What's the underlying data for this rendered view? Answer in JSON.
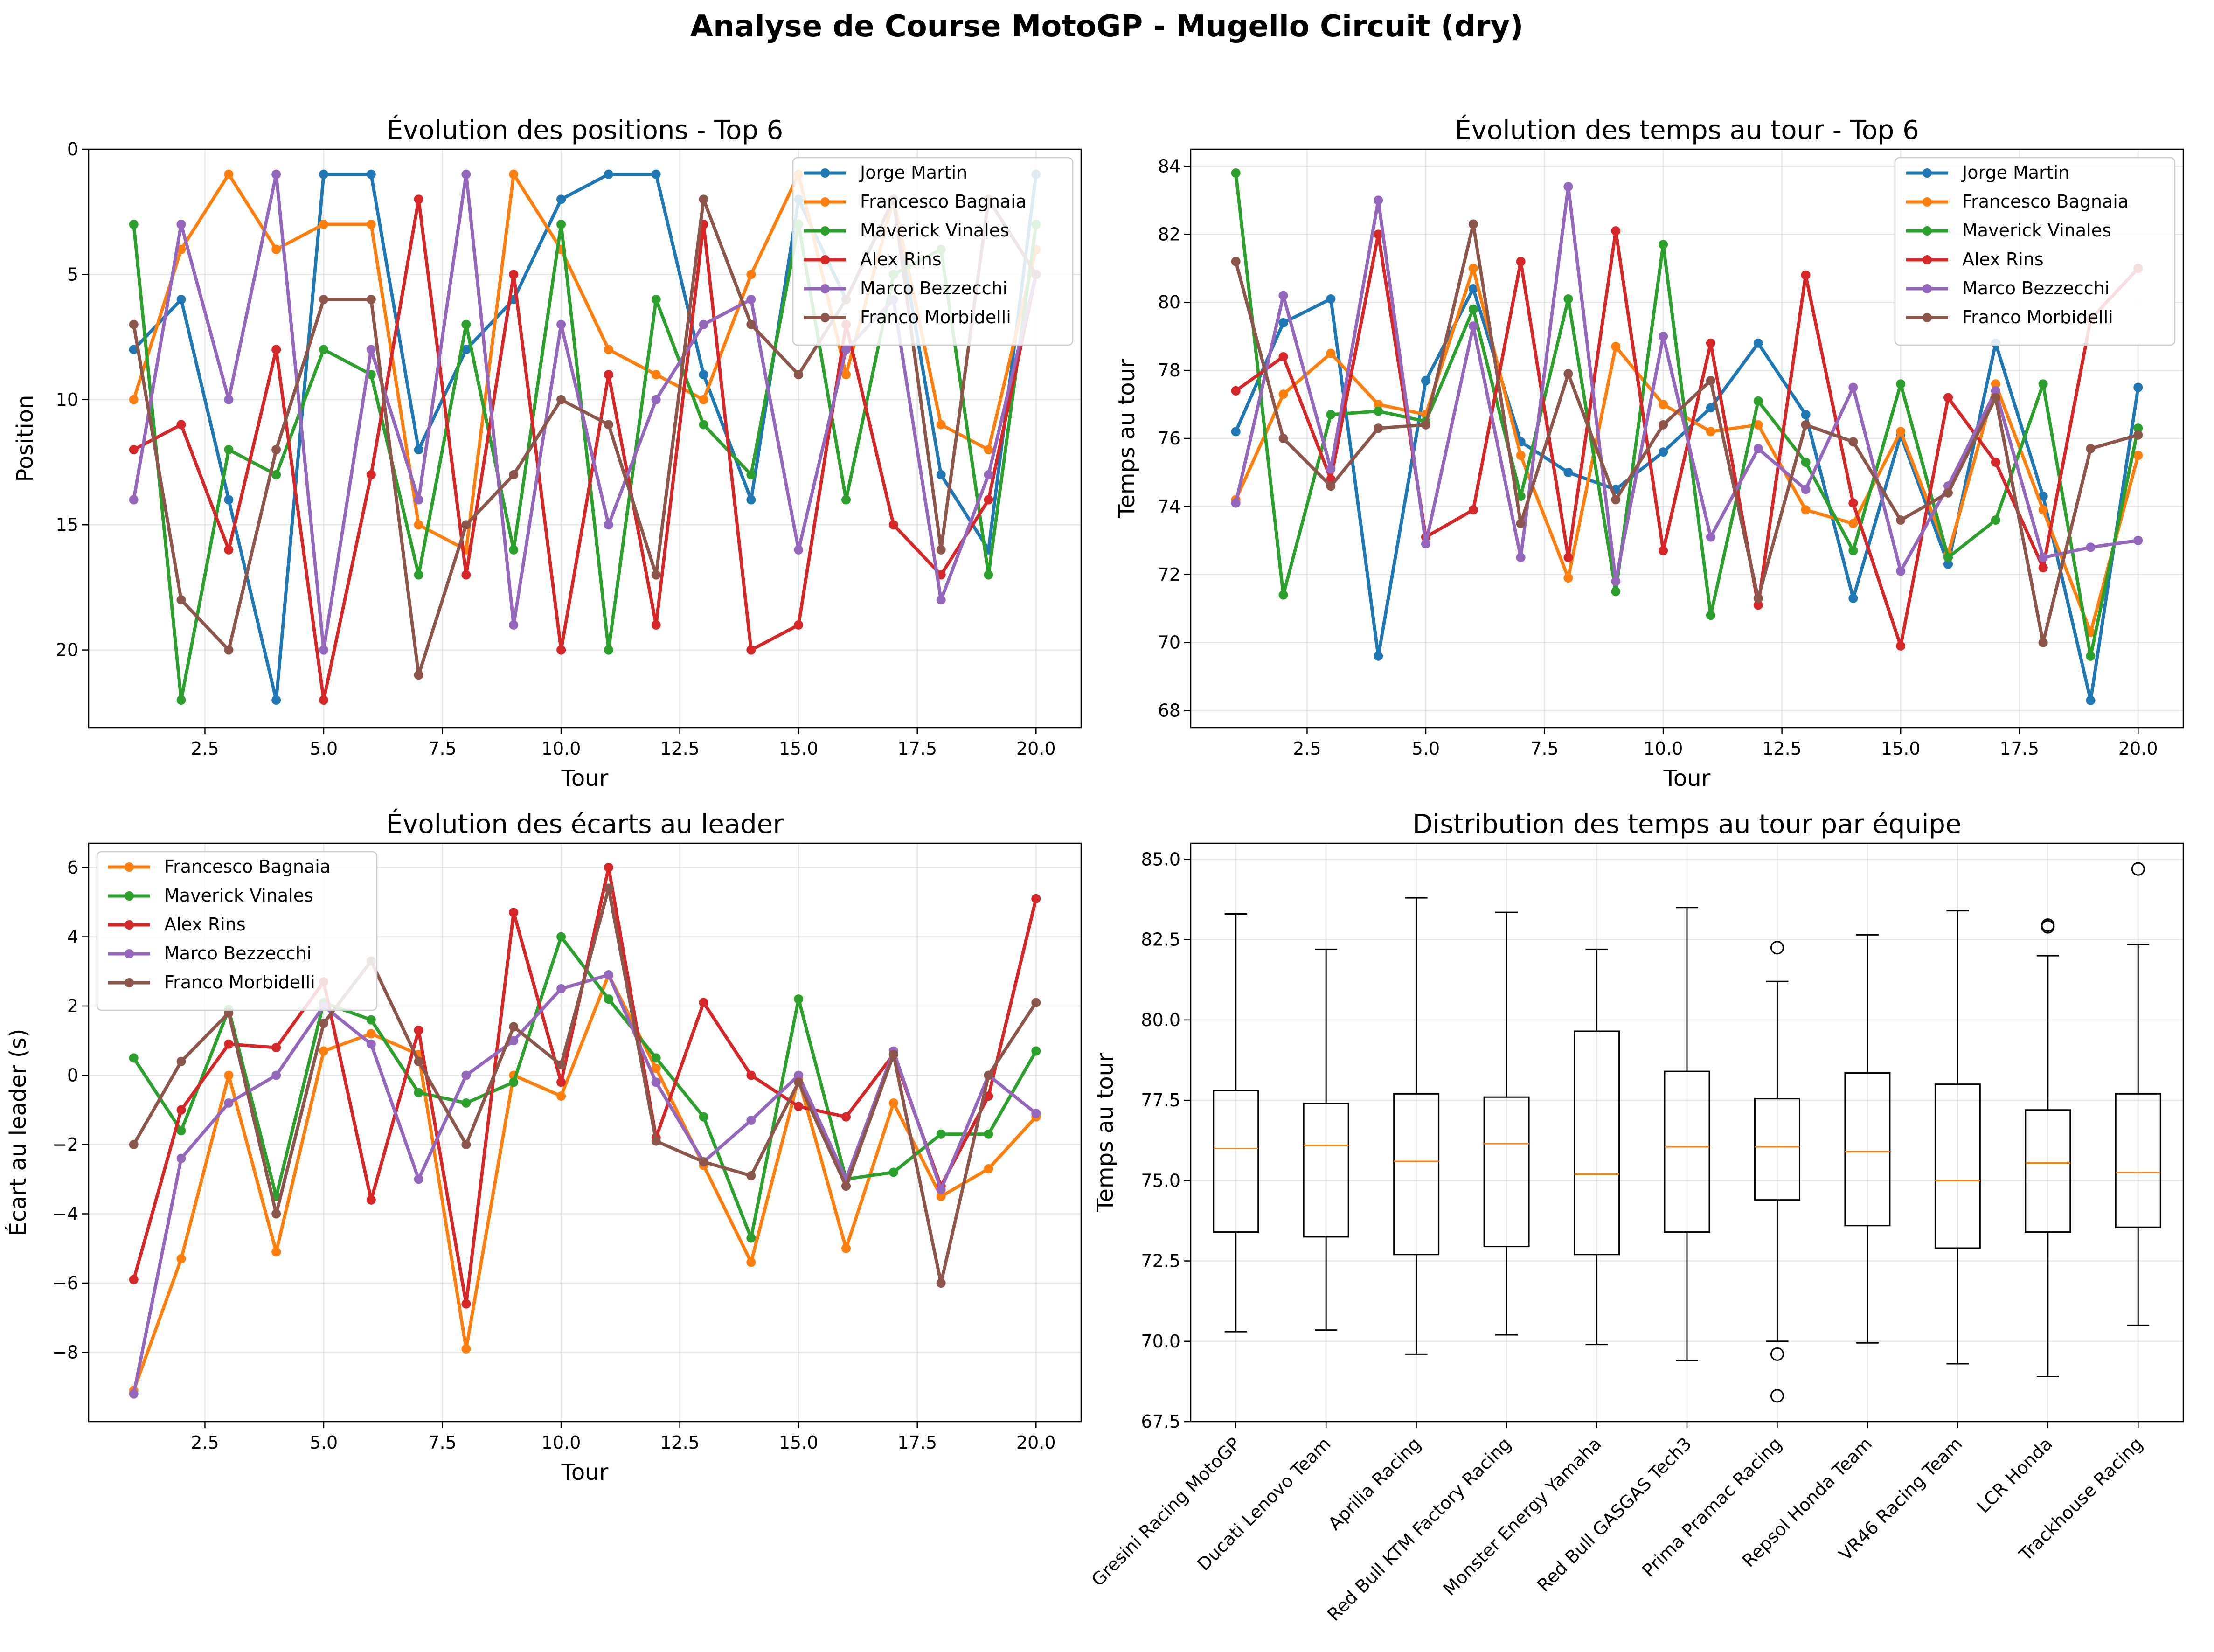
{
  "figure": {
    "suptitle": "Analyse de Course MotoGP - Mugello Circuit (dry)",
    "colors": {
      "Jorge Martin": "#1f77b4",
      "Francesco Bagnaia": "#ff7f0e",
      "Maverick Vinales": "#2ca02c",
      "Alex Rins": "#d62728",
      "Marco Bezzecchi": "#9467bd",
      "Franco Morbidelli": "#8c564b",
      "median": "#ff7f0e"
    }
  },
  "chart_data": [
    {
      "id": "positions",
      "type": "line",
      "title": "Évolution des positions - Top 6",
      "xlabel": "Tour",
      "ylabel": "Position",
      "x": [
        1,
        2,
        3,
        4,
        5,
        6,
        7,
        8,
        9,
        10,
        11,
        12,
        13,
        14,
        15,
        16,
        17,
        18,
        19,
        20
      ],
      "xlim": [
        0.05,
        20.95
      ],
      "ylim": [
        23.1,
        0
      ],
      "y_inverted": true,
      "xticks": [
        "2.5",
        "5.0",
        "7.5",
        "10.0",
        "12.5",
        "15.0",
        "17.5",
        "20.0"
      ],
      "xtick_values": [
        2.5,
        5,
        7.5,
        10,
        12.5,
        15,
        17.5,
        20
      ],
      "yticks": [
        "0",
        "5",
        "10",
        "15",
        "20"
      ],
      "ytick_values": [
        0,
        5,
        10,
        15,
        20
      ],
      "grid": true,
      "legend": "top-right",
      "series": [
        {
          "name": "Jorge Martin",
          "values": [
            8,
            6,
            14,
            22,
            1,
            1,
            12,
            8,
            6,
            2,
            1,
            1,
            9,
            14,
            2,
            6,
            2,
            13,
            16,
            1
          ]
        },
        {
          "name": "Francesco Bagnaia",
          "values": [
            10,
            4,
            1,
            4,
            3,
            3,
            15,
            16,
            1,
            4,
            8,
            9,
            10,
            5,
            1,
            9,
            2,
            11,
            12,
            4
          ]
        },
        {
          "name": "Maverick Vinales",
          "values": [
            3,
            22,
            12,
            13,
            8,
            9,
            17,
            7,
            16,
            3,
            20,
            6,
            11,
            13,
            3,
            14,
            5,
            4,
            17,
            3
          ]
        },
        {
          "name": "Alex Rins",
          "values": [
            12,
            11,
            16,
            8,
            22,
            13,
            2,
            17,
            5,
            20,
            9,
            19,
            3,
            20,
            19,
            7,
            15,
            17,
            14,
            5
          ]
        },
        {
          "name": "Marco Bezzecchi",
          "values": [
            14,
            3,
            10,
            1,
            20,
            8,
            14,
            1,
            19,
            7,
            15,
            10,
            7,
            6,
            16,
            8,
            6,
            18,
            13,
            5
          ]
        },
        {
          "name": "Franco Morbidelli",
          "values": [
            7,
            18,
            20,
            12,
            6,
            6,
            21,
            15,
            13,
            10,
            11,
            17,
            2,
            7,
            9,
            6,
            2,
            16,
            2,
            5
          ]
        }
      ]
    },
    {
      "id": "laptimes",
      "type": "line",
      "title": "Évolution des temps au tour - Top 6",
      "xlabel": "Tour",
      "ylabel": "Temps au tour",
      "x": [
        1,
        2,
        3,
        4,
        5,
        6,
        7,
        8,
        9,
        10,
        11,
        12,
        13,
        14,
        15,
        16,
        17,
        18,
        19,
        20
      ],
      "xlim": [
        0.05,
        20.95
      ],
      "ylim": [
        67.5,
        84.5
      ],
      "xticks": [
        "2.5",
        "5.0",
        "7.5",
        "10.0",
        "12.5",
        "15.0",
        "17.5",
        "20.0"
      ],
      "xtick_values": [
        2.5,
        5,
        7.5,
        10,
        12.5,
        15,
        17.5,
        20
      ],
      "yticks": [
        "68",
        "70",
        "72",
        "74",
        "76",
        "78",
        "80",
        "82",
        "84"
      ],
      "ytick_values": [
        68,
        70,
        72,
        74,
        76,
        78,
        80,
        82,
        84
      ],
      "grid": true,
      "legend": "top-right",
      "series": [
        {
          "name": "Jorge Martin",
          "values": [
            76.2,
            79.4,
            80.1,
            69.6,
            77.7,
            80.4,
            75.9,
            75.0,
            74.5,
            75.6,
            76.9,
            78.8,
            76.7,
            71.3,
            76.1,
            72.3,
            78.8,
            74.3,
            68.3,
            77.5
          ]
        },
        {
          "name": "Francesco Bagnaia",
          "values": [
            74.2,
            77.3,
            78.5,
            77.0,
            76.7,
            81.0,
            75.5,
            71.9,
            78.7,
            77.0,
            76.2,
            76.4,
            73.9,
            73.5,
            76.2,
            72.6,
            77.6,
            73.9,
            70.3,
            75.5
          ]
        },
        {
          "name": "Maverick Vinales",
          "values": [
            83.8,
            71.4,
            76.7,
            76.8,
            76.5,
            79.8,
            74.3,
            80.1,
            71.5,
            81.7,
            70.8,
            77.1,
            75.3,
            72.7,
            77.6,
            72.5,
            73.6,
            77.6,
            69.6,
            76.3
          ]
        },
        {
          "name": "Alex Rins",
          "values": [
            77.4,
            78.4,
            74.8,
            82.0,
            73.1,
            73.9,
            81.2,
            72.5,
            82.1,
            72.7,
            78.8,
            71.1,
            80.8,
            74.1,
            69.9,
            77.2,
            75.3,
            72.2,
            79.5,
            81.0
          ]
        },
        {
          "name": "Marco Bezzecchi",
          "values": [
            74.1,
            80.2,
            75.1,
            83.0,
            72.9,
            79.3,
            72.5,
            83.4,
            71.8,
            79.0,
            73.1,
            75.7,
            74.5,
            77.5,
            72.1,
            74.6,
            77.4,
            72.5,
            72.8,
            73.0
          ]
        },
        {
          "name": "Franco Morbidelli",
          "values": [
            81.2,
            76.0,
            74.6,
            76.3,
            76.4,
            82.3,
            73.5,
            77.9,
            74.2,
            76.4,
            77.7,
            71.3,
            76.4,
            75.9,
            73.6,
            74.4,
            77.2,
            70.0,
            75.7,
            76.1
          ]
        }
      ]
    },
    {
      "id": "gaps",
      "type": "line",
      "title": "Évolution des écarts au leader",
      "xlabel": "Tour",
      "ylabel": "Écart au leader (s)",
      "x": [
        1,
        2,
        3,
        4,
        5,
        6,
        7,
        8,
        9,
        10,
        11,
        12,
        13,
        14,
        15,
        16,
        17,
        18,
        19,
        20
      ],
      "xlim": [
        0.05,
        20.95
      ],
      "ylim": [
        -10.0,
        6.7
      ],
      "xticks": [
        "2.5",
        "5.0",
        "7.5",
        "10.0",
        "12.5",
        "15.0",
        "17.5",
        "20.0"
      ],
      "xtick_values": [
        2.5,
        5,
        7.5,
        10,
        12.5,
        15,
        17.5,
        20
      ],
      "yticks": [
        "−8",
        "−6",
        "−4",
        "−2",
        "0",
        "2",
        "4",
        "6"
      ],
      "ytick_values": [
        -8,
        -6,
        -4,
        -2,
        0,
        2,
        4,
        6
      ],
      "grid": true,
      "legend": "top-left",
      "series": [
        {
          "name": "Francesco Bagnaia",
          "values": [
            -9.1,
            -5.3,
            0.0,
            -5.1,
            0.7,
            1.2,
            0.6,
            -7.9,
            0.0,
            -0.6,
            2.9,
            0.2,
            -2.6,
            -5.4,
            -0.1,
            -5.0,
            -0.8,
            -3.5,
            -2.7,
            -1.2
          ]
        },
        {
          "name": "Maverick Vinales",
          "values": [
            0.5,
            -1.6,
            1.9,
            -3.5,
            2.1,
            1.6,
            -0.5,
            -0.8,
            -0.2,
            4.0,
            2.2,
            0.5,
            -1.2,
            -4.7,
            2.2,
            -3.0,
            -2.8,
            -1.7,
            -1.7,
            0.7
          ]
        },
        {
          "name": "Alex Rins",
          "values": [
            -5.9,
            -1.0,
            0.9,
            0.8,
            2.7,
            -3.6,
            1.3,
            -6.6,
            4.7,
            -0.2,
            6.0,
            -1.8,
            2.1,
            0.0,
            -0.9,
            -1.2,
            0.6,
            -3.2,
            -0.6,
            5.1
          ]
        },
        {
          "name": "Marco Bezzecchi",
          "values": [
            -9.2,
            -2.4,
            -0.8,
            0.0,
            2.0,
            0.9,
            -3.0,
            0.0,
            1.0,
            2.5,
            2.9,
            -0.2,
            -2.5,
            -1.3,
            0.0,
            -3.0,
            0.7,
            -3.3,
            0.0,
            -1.1
          ]
        },
        {
          "name": "Franco Morbidelli",
          "values": [
            -2.0,
            0.4,
            1.8,
            -4.0,
            1.5,
            3.3,
            0.4,
            -2.0,
            1.4,
            0.3,
            5.4,
            -1.9,
            -2.5,
            -2.9,
            -0.2,
            -3.2,
            0.6,
            -6.0,
            0.0,
            2.1
          ]
        }
      ]
    },
    {
      "id": "teams",
      "type": "box",
      "title": "Distribution des temps au tour par équipe",
      "ylabel": "Temps au tour",
      "ylim": [
        67.5,
        85.5
      ],
      "yticks": [
        "67.5",
        "70.0",
        "72.5",
        "75.0",
        "77.5",
        "80.0",
        "82.5",
        "85.0"
      ],
      "ytick_values": [
        67.5,
        70,
        72.5,
        75,
        77.5,
        80,
        82.5,
        85
      ],
      "grid": true,
      "categories": [
        "Gresini Racing MotoGP",
        "Ducati Lenovo Team",
        "Aprilia Racing",
        "Red Bull KTM Factory Racing",
        "Monster Energy Yamaha",
        "Red Bull GASGAS Tech3",
        "Prima Pramac Racing",
        "Repsol Honda Team",
        "VR46 Racing Team",
        "LCR Honda",
        "Trackhouse Racing"
      ],
      "boxes": [
        {
          "whisker_low": 70.3,
          "q1": 73.4,
          "median": 76.0,
          "q3": 77.8,
          "whisker_high": 83.3,
          "outliers": []
        },
        {
          "whisker_low": 70.35,
          "q1": 73.25,
          "median": 76.1,
          "q3": 77.4,
          "whisker_high": 82.2,
          "outliers": []
        },
        {
          "whisker_low": 69.6,
          "q1": 72.7,
          "median": 75.6,
          "q3": 77.7,
          "whisker_high": 83.8,
          "outliers": []
        },
        {
          "whisker_low": 70.2,
          "q1": 72.95,
          "median": 76.15,
          "q3": 77.6,
          "whisker_high": 83.35,
          "outliers": []
        },
        {
          "whisker_low": 69.9,
          "q1": 72.7,
          "median": 75.2,
          "q3": 79.65,
          "whisker_high": 82.2,
          "outliers": []
        },
        {
          "whisker_low": 69.4,
          "q1": 73.4,
          "median": 76.05,
          "q3": 78.4,
          "whisker_high": 83.5,
          "outliers": []
        },
        {
          "whisker_low": 70.0,
          "q1": 74.4,
          "median": 76.05,
          "q3": 77.55,
          "whisker_high": 81.2,
          "outliers": [
            82.25,
            69.6,
            68.3
          ]
        },
        {
          "whisker_low": 69.95,
          "q1": 73.6,
          "median": 75.9,
          "q3": 78.35,
          "whisker_high": 82.65,
          "outliers": []
        },
        {
          "whisker_low": 69.3,
          "q1": 72.9,
          "median": 75.0,
          "q3": 78.0,
          "whisker_high": 83.4,
          "outliers": []
        },
        {
          "whisker_low": 68.9,
          "q1": 73.4,
          "median": 75.55,
          "q3": 77.2,
          "whisker_high": 82.0,
          "outliers": [
            82.9,
            82.95
          ]
        },
        {
          "whisker_low": 70.5,
          "q1": 73.55,
          "median": 75.25,
          "q3": 77.7,
          "whisker_high": 82.35,
          "outliers": [
            84.7
          ]
        }
      ]
    }
  ]
}
